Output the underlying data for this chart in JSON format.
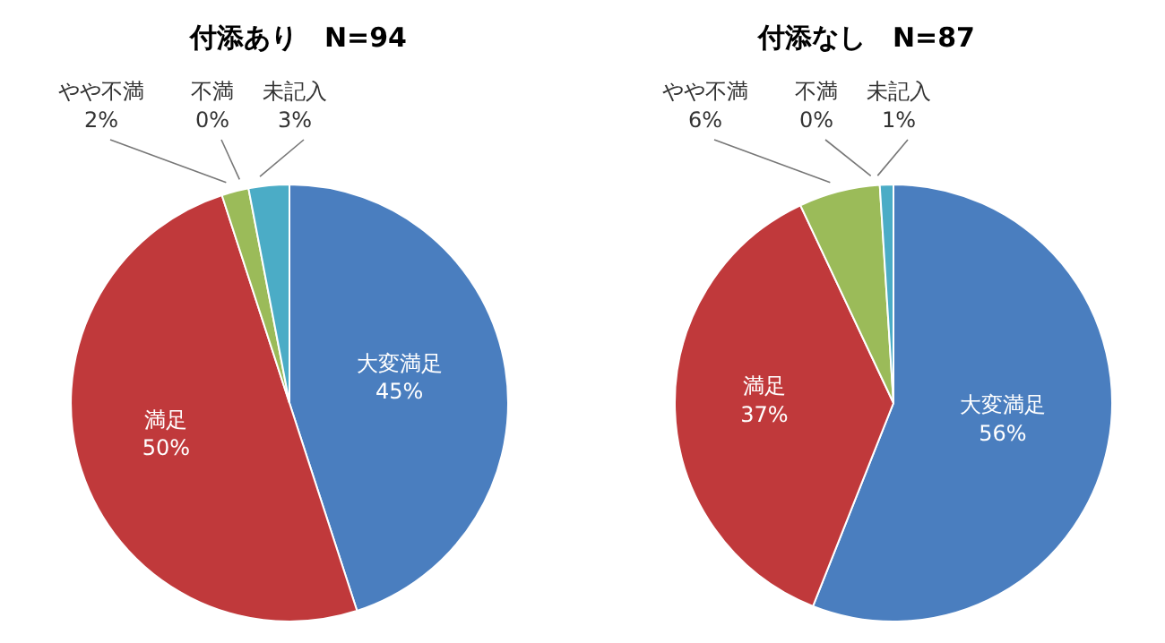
{
  "chart_data": [
    {
      "type": "pie",
      "title": "付添あり　N=94",
      "categories": [
        "大変満足",
        "満足",
        "やや不満",
        "不満",
        "未記入"
      ],
      "values": [
        45,
        50,
        2,
        0,
        3
      ],
      "value_labels": [
        "45%",
        "50%",
        "2%",
        "0%",
        "3%"
      ],
      "colors": [
        "#4a7ebf",
        "#c0393b",
        "#9bbb59",
        "#8064a2",
        "#4bacc6"
      ]
    },
    {
      "type": "pie",
      "title": "付添なし　N=87",
      "categories": [
        "大変満足",
        "満足",
        "やや不満",
        "不満",
        "未記入"
      ],
      "values": [
        56,
        37,
        6,
        0,
        1
      ],
      "value_labels": [
        "56%",
        "37%",
        "6%",
        "0%",
        "1%"
      ],
      "colors": [
        "#4a7ebf",
        "#c0393b",
        "#9bbb59",
        "#8064a2",
        "#4bacc6"
      ]
    }
  ]
}
